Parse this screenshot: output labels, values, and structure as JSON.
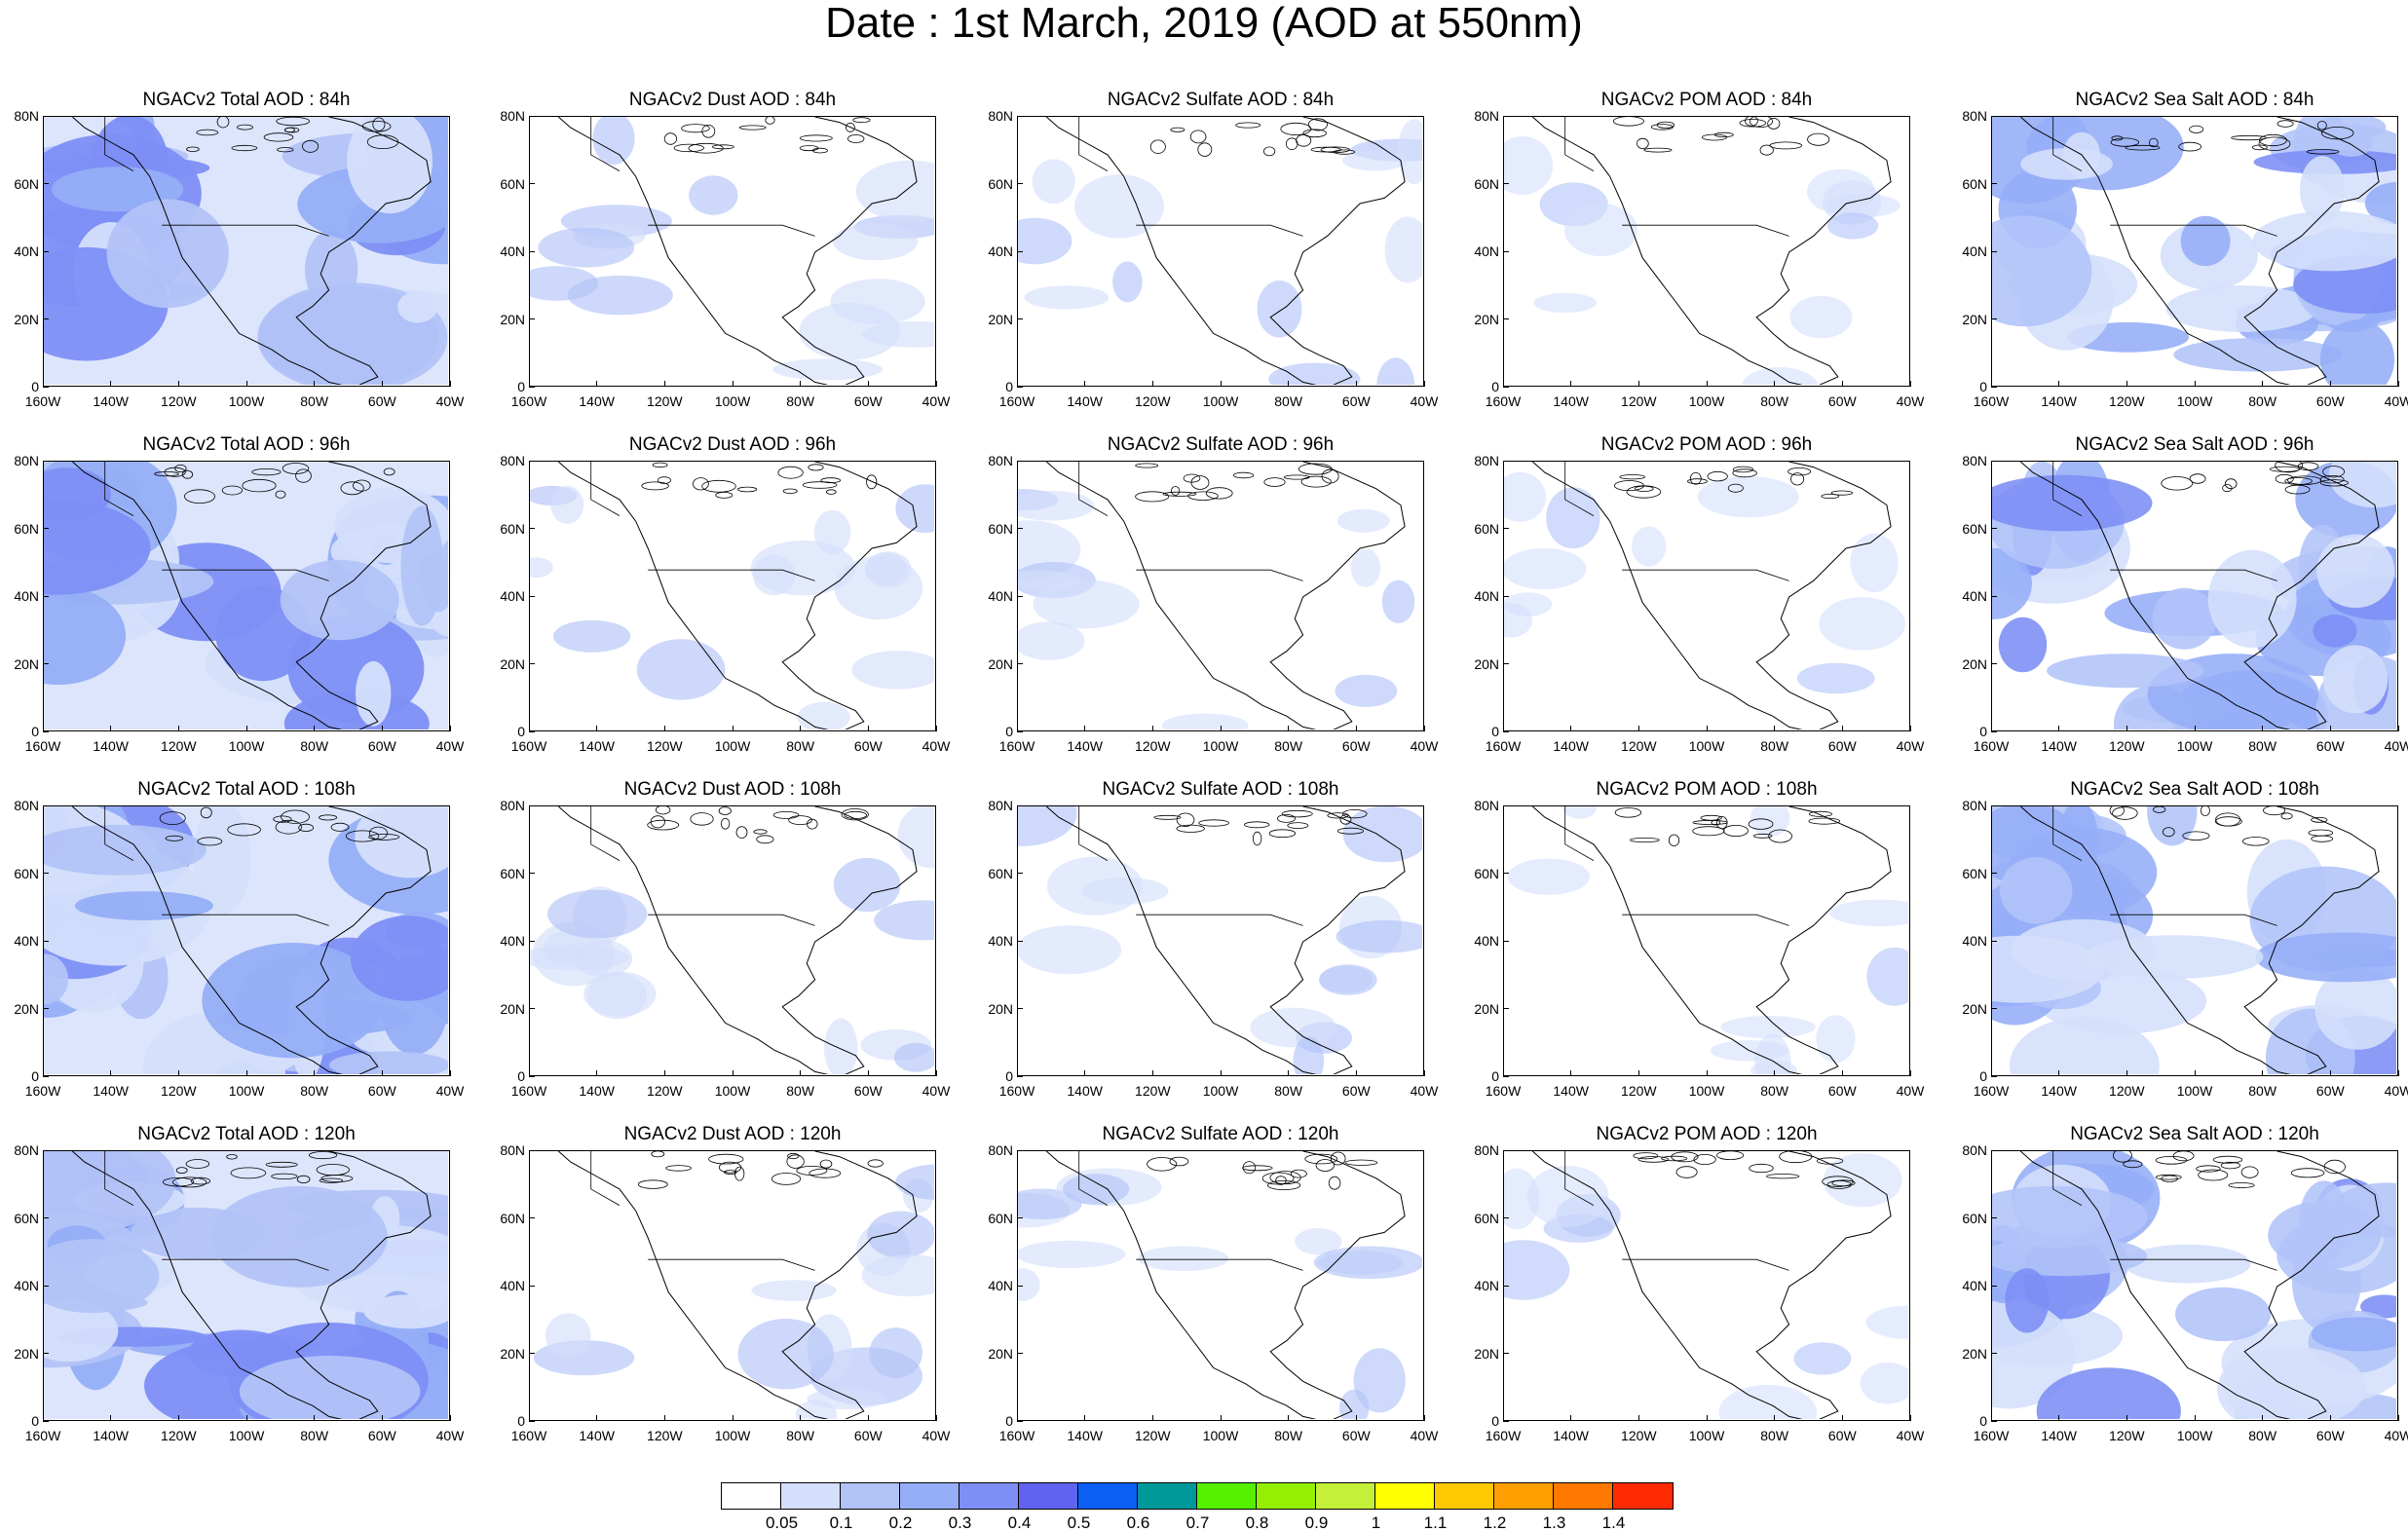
{
  "title": "Date : 1st March, 2019 (AOD at 550nm)",
  "x_ticks": [
    "160W",
    "140W",
    "120W",
    "100W",
    "80W",
    "60W",
    "40W"
  ],
  "y_ticks": [
    "80N",
    "60N",
    "40N",
    "20N",
    "0"
  ],
  "columns": [
    {
      "key": "total",
      "rows": [
        "NGACv2 Total AOD : 84h",
        "NGACv2 Total AOD : 96h",
        "NGACv2 Total AOD : 108h",
        "NGACv2 Total AOD : 120h"
      ],
      "intensity": 1.0
    },
    {
      "key": "dust",
      "rows": [
        "NGACv2 Dust AOD : 84h",
        "NGACv2 Dust AOD : 96h",
        "NGACv2 Dust AOD : 108h",
        "NGACv2 Dust AOD : 120h"
      ],
      "intensity": 0.25
    },
    {
      "key": "sulfate",
      "rows": [
        "NGACv2 Sulfate AOD : 84h",
        "NGACv2 Sulfate AOD : 96h",
        "NGACv2 Sulfate AOD : 108h",
        "NGACv2 Sulfate AOD : 120h"
      ],
      "intensity": 0.2
    },
    {
      "key": "pom",
      "rows": [
        "NGACv2 POM AOD : 84h",
        "NGACv2 POM AOD : 96h",
        "NGACv2 POM AOD : 108h",
        "NGACv2 POM AOD : 120h"
      ],
      "intensity": 0.12
    },
    {
      "key": "seasalt",
      "rows": [
        "NGACv2 Sea Salt AOD : 84h",
        "NGACv2 Sea Salt AOD : 96h",
        "NGACv2 Sea Salt AOD : 108h",
        "NGACv2 Sea Salt  AOD : 120h"
      ],
      "intensity": 0.85
    }
  ],
  "colorbar": {
    "labels": [
      "0.05",
      "0.1",
      "0.2",
      "0.3",
      "0.4",
      "0.5",
      "0.6",
      "0.7",
      "0.8",
      "0.9",
      "1",
      "1.1",
      "1.2",
      "1.3",
      "1.4"
    ],
    "colors": [
      "#ffffff",
      "#d4dffb",
      "#b2c3f8",
      "#95aef7",
      "#7d8ff5",
      "#5f63ef",
      "#0c5ff5",
      "#009999",
      "#55ef00",
      "#92f000",
      "#c5f03a",
      "#ffff00",
      "#ffc800",
      "#ff9f00",
      "#ff7800",
      "#ff2a00"
    ]
  }
}
